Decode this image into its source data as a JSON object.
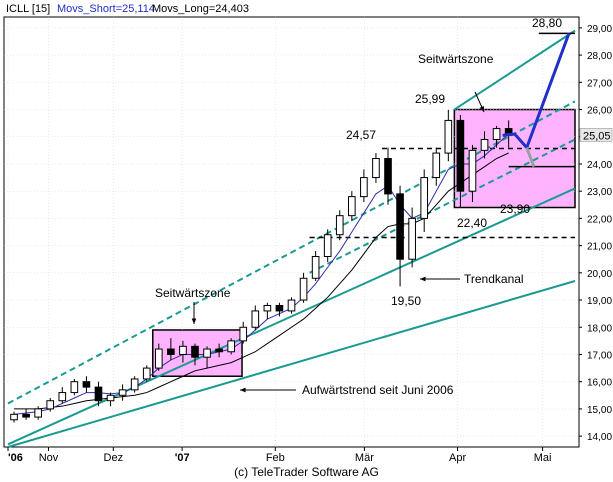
{
  "header": {
    "symbol": "ICLL [15]",
    "movs_short": "Movs_Short=25,114",
    "movs_long": "Movs_Long=24,403"
  },
  "footer": "(c) TeleTrader Software AG",
  "colors": {
    "candle": "#000000",
    "ma_short": "#2e2ea8",
    "ma_long": "#000000",
    "channel": "#1a9a90",
    "zone_fill": "#ffb3ff",
    "projection": "#2030c8",
    "projection_alt": "#9aa0a0",
    "header_blue": "#2030c8",
    "price_badge": "#e8e8e8"
  },
  "chart_data": {
    "type": "candlestick",
    "title": "",
    "y_axis": {
      "side": "right",
      "min": 13.6,
      "max": 29.4,
      "ticks": [
        "14,00",
        "15,00",
        "16,00",
        "17,00",
        "18,00",
        "19,00",
        "20,00",
        "21,00",
        "22,00",
        "23,00",
        "24,00",
        "25,00",
        "26,00",
        "27,00",
        "28,00",
        "29,00"
      ]
    },
    "x_axis": {
      "labels": [
        "'06",
        "Nov",
        "Dez",
        "'07",
        "Feb",
        "Mär",
        "Apr",
        "Mai"
      ],
      "label_positions": [
        0,
        0.5,
        1.3,
        2.15,
        3.3,
        4.4,
        5.55,
        6.6
      ]
    },
    "current_price": "25,05",
    "ohlc": [
      [
        14.6,
        14.9,
        14.5,
        14.8
      ],
      [
        14.8,
        15.0,
        14.6,
        14.7
      ],
      [
        14.7,
        15.1,
        14.6,
        15.0
      ],
      [
        15.0,
        15.4,
        14.9,
        15.3
      ],
      [
        15.3,
        15.8,
        15.2,
        15.6
      ],
      [
        15.6,
        16.1,
        15.5,
        16.0
      ],
      [
        16.0,
        16.2,
        15.6,
        15.8
      ],
      [
        15.8,
        16.0,
        15.1,
        15.3
      ],
      [
        15.3,
        15.6,
        15.1,
        15.5
      ],
      [
        15.5,
        15.9,
        15.3,
        15.7
      ],
      [
        15.7,
        16.2,
        15.6,
        16.1
      ],
      [
        16.1,
        16.6,
        16.0,
        16.5
      ],
      [
        16.5,
        17.4,
        16.4,
        17.2
      ],
      [
        17.2,
        17.6,
        16.8,
        17.0
      ],
      [
        17.0,
        17.5,
        16.7,
        17.3
      ],
      [
        17.3,
        17.4,
        16.6,
        16.9
      ],
      [
        16.9,
        17.3,
        16.5,
        17.2
      ],
      [
        17.2,
        17.4,
        16.9,
        17.1
      ],
      [
        17.1,
        17.6,
        17.0,
        17.5
      ],
      [
        17.5,
        18.2,
        17.4,
        18.0
      ],
      [
        18.0,
        18.8,
        17.9,
        18.6
      ],
      [
        18.6,
        18.9,
        18.3,
        18.8
      ],
      [
        18.8,
        18.9,
        18.4,
        18.6
      ],
      [
        18.6,
        19.1,
        18.5,
        19.0
      ],
      [
        19.0,
        20.0,
        18.9,
        19.8
      ],
      [
        19.8,
        20.8,
        19.7,
        20.6
      ],
      [
        20.6,
        21.6,
        20.4,
        21.4
      ],
      [
        21.4,
        22.3,
        21.2,
        22.1
      ],
      [
        22.1,
        23.0,
        21.9,
        22.8
      ],
      [
        22.8,
        23.8,
        22.6,
        23.5
      ],
      [
        23.5,
        24.4,
        23.3,
        24.2
      ],
      [
        24.2,
        24.6,
        22.5,
        22.9
      ],
      [
        22.9,
        23.2,
        19.5,
        20.5
      ],
      [
        20.5,
        22.4,
        20.2,
        22.0
      ],
      [
        22.0,
        23.8,
        21.5,
        23.5
      ],
      [
        23.5,
        24.6,
        23.2,
        24.4
      ],
      [
        24.4,
        25.99,
        24.1,
        25.6
      ],
      [
        25.6,
        25.8,
        22.4,
        23.0
      ],
      [
        23.0,
        24.7,
        22.6,
        24.5
      ],
      [
        24.5,
        25.2,
        24.2,
        24.9
      ],
      [
        24.9,
        25.4,
        24.6,
        25.3
      ],
      [
        25.3,
        25.6,
        24.6,
        25.05
      ]
    ],
    "ma_short": [
      14.8,
      14.85,
      14.9,
      15.0,
      15.2,
      15.4,
      15.6,
      15.6,
      15.55,
      15.6,
      15.8,
      16.1,
      16.5,
      16.8,
      17.0,
      17.0,
      17.0,
      17.1,
      17.2,
      17.5,
      17.9,
      18.3,
      18.5,
      18.7,
      19.1,
      19.6,
      20.2,
      20.8,
      21.5,
      22.2,
      22.9,
      23.2,
      22.5,
      22.0,
      22.2,
      23.0,
      23.8,
      24.0,
      24.0,
      24.3,
      24.7,
      25.114
    ],
    "ma_long": [
      15.0,
      15.0,
      15.0,
      15.05,
      15.1,
      15.2,
      15.3,
      15.35,
      15.4,
      15.45,
      15.5,
      15.6,
      15.8,
      16.0,
      16.2,
      16.4,
      16.5,
      16.6,
      16.7,
      16.9,
      17.1,
      17.4,
      17.7,
      18.0,
      18.3,
      18.7,
      19.1,
      19.6,
      20.1,
      20.7,
      21.3,
      21.7,
      21.8,
      21.8,
      22.0,
      22.5,
      23.0,
      23.3,
      23.6,
      23.9,
      24.2,
      24.403
    ],
    "projection": [
      [
        41,
        25.05
      ],
      [
        42,
        25.1
      ],
      [
        43,
        24.6
      ],
      [
        46.5,
        28.8
      ]
    ],
    "projection_alt": [
      [
        43,
        24.6
      ],
      [
        43.6,
        23.9
      ]
    ],
    "channel_lines": [
      {
        "name": "upper-trend-dashed",
        "style": "dashed",
        "from": [
          0,
          15.2
        ],
        "to": [
          47,
          26.3
        ]
      },
      {
        "name": "upper-trend-solid",
        "style": "solid",
        "from": [
          37,
          26.0
        ],
        "to": [
          47,
          28.9
        ]
      },
      {
        "name": "lower-trend-dashed",
        "style": "dashed",
        "from": [
          25,
          20.0
        ],
        "to": [
          47,
          24.9
        ]
      },
      {
        "name": "lower-trend-solid",
        "style": "solid",
        "from": [
          0,
          13.7
        ],
        "to": [
          47,
          23.1
        ]
      },
      {
        "name": "long-trend-solid",
        "style": "solid",
        "from": [
          0,
          13.6
        ],
        "to": [
          47,
          19.7
        ]
      }
    ],
    "zones": [
      {
        "name": "seitwaertszone-1",
        "x0": 12,
        "x1": 19.4,
        "y0": 16.2,
        "y1": 17.9
      },
      {
        "name": "seitwaertszone-2",
        "x0": 37,
        "x1": 47,
        "y0": 22.4,
        "y1": 26.0
      }
    ],
    "levels": [
      {
        "name": "level-24-57",
        "value": 24.57,
        "x0": 31,
        "x1": 47,
        "style": "dashed"
      },
      {
        "name": "level-21-30",
        "value": 21.3,
        "x0": 25,
        "x1": 47,
        "style": "dashed"
      },
      {
        "name": "level-23-90",
        "value": 23.9,
        "x0": 41.5,
        "x1": 47,
        "style": "solid"
      },
      {
        "name": "level-28-80",
        "value": 28.8,
        "x0": 44,
        "x1": 47,
        "style": "solid"
      }
    ],
    "annotations": [
      {
        "name": "label-seitwaertszone-1",
        "text": "Seitwärtszone"
      },
      {
        "name": "label-aufwaertstrend",
        "text": "Aufwärtstrend seit Juni 2006"
      },
      {
        "name": "label-seitwaertszone-2",
        "text": "Seitwärtszone"
      },
      {
        "name": "label-trendkanal",
        "text": "Trendkanal"
      },
      {
        "name": "label-24-57",
        "text": "24,57"
      },
      {
        "name": "label-25-99",
        "text": "25,99"
      },
      {
        "name": "label-28-80",
        "text": "28,80"
      },
      {
        "name": "label-23-90",
        "text": "23,90"
      },
      {
        "name": "label-22-40",
        "text": "22,40"
      },
      {
        "name": "label-19-50",
        "text": "19,50"
      }
    ]
  }
}
